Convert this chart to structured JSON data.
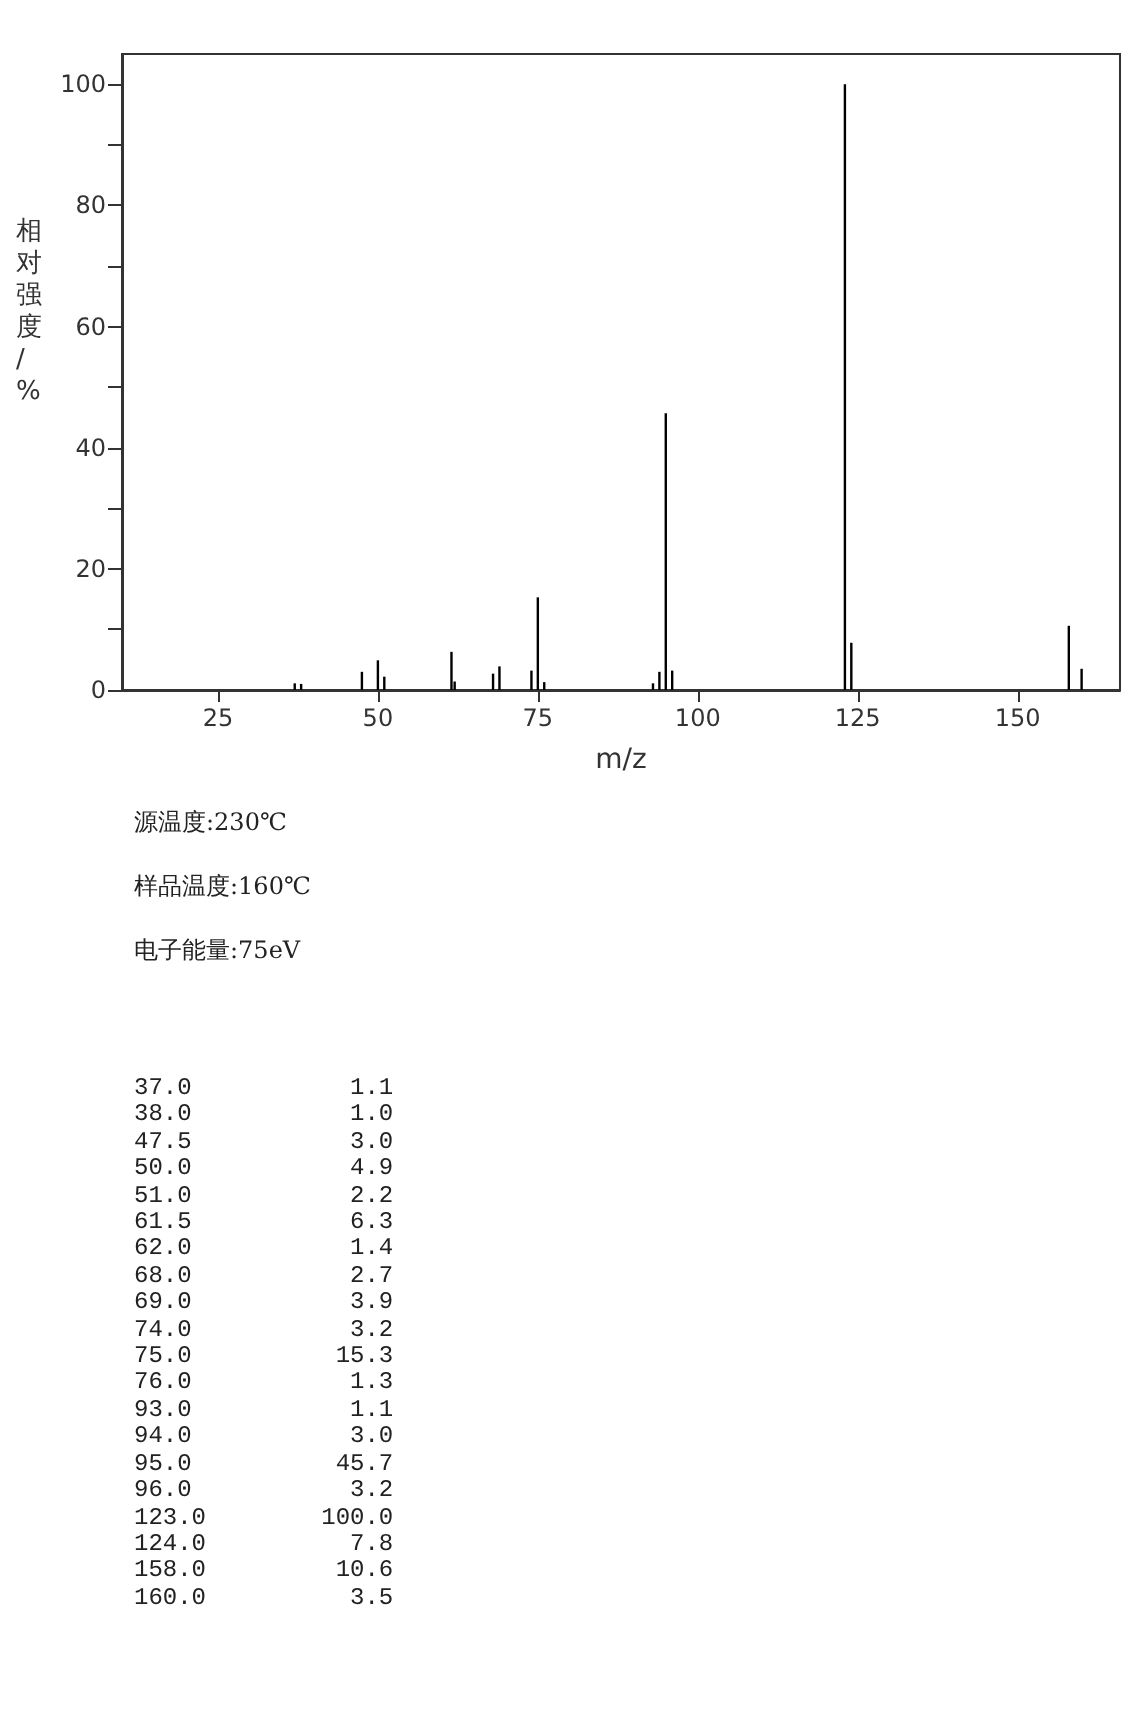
{
  "chart_data": {
    "type": "bar",
    "xlabel": "m/z",
    "ylabel": "相对强度/%",
    "x": [
      37.0,
      38.0,
      47.5,
      50.0,
      51.0,
      61.5,
      62.0,
      68.0,
      69.0,
      74.0,
      75.0,
      76.0,
      93.0,
      94.0,
      95.0,
      96.0,
      123.0,
      124.0,
      158.0,
      160.0
    ],
    "values": [
      1.1,
      1.0,
      3.0,
      4.9,
      2.2,
      6.3,
      1.4,
      2.7,
      3.9,
      3.2,
      15.3,
      1.3,
      1.1,
      3.0,
      45.7,
      3.2,
      100.0,
      7.8,
      10.6,
      3.5
    ],
    "color": "#000000",
    "xlim": [
      10,
      166
    ],
    "xticks": [
      25,
      50,
      75,
      100,
      125,
      150
    ],
    "ylim": [
      0,
      105
    ],
    "yticks": [
      0,
      {
        "value": 10,
        "label": null
      },
      20,
      {
        "value": 30,
        "label": null
      },
      40,
      {
        "value": 50,
        "label": null
      },
      60,
      {
        "value": 70,
        "label": null
      },
      80,
      {
        "value": 90,
        "label": null
      },
      100
    ],
    "grid": false,
    "annotations": [
      "源温度:230℃",
      "样品温度:160℃",
      "电子能量:75eV",
      "37.0           1.1",
      "38.0           1.0",
      "47.5           3.0",
      "50.0           4.9",
      "51.0           2.2",
      "61.5           6.3",
      "62.0           1.4",
      "68.0           2.7",
      "69.0           3.9",
      "74.0           3.2",
      "75.0          15.3",
      "76.0           1.3",
      "93.0           1.1",
      "94.0           3.0",
      "95.0          45.7",
      "96.0           3.2",
      "123.0        100.0",
      "124.0          7.8",
      "158.0         10.6",
      "160.0          3.5"
    ]
  }
}
